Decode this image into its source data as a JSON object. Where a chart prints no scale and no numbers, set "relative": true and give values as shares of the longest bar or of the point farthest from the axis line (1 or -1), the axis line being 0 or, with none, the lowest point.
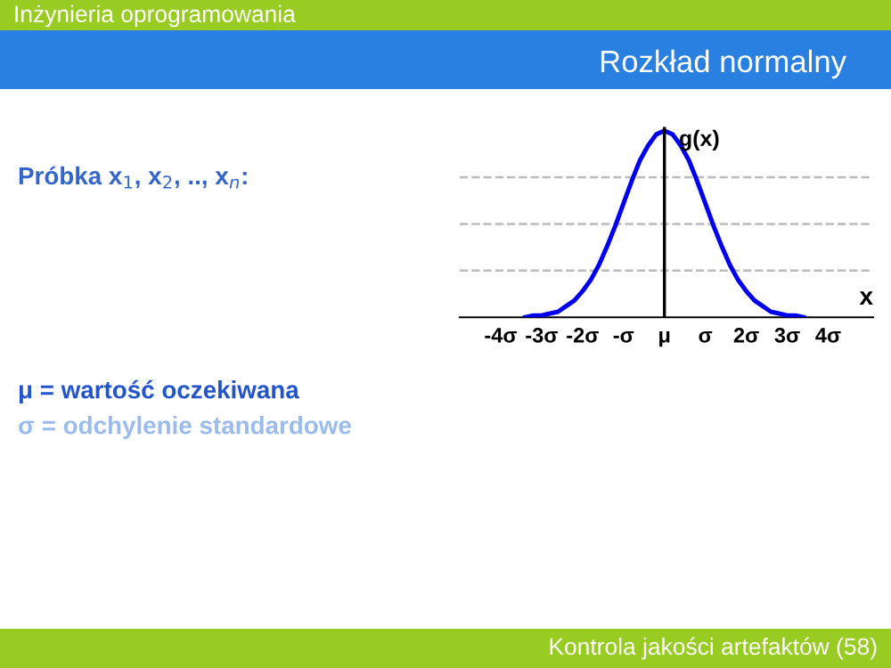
{
  "chart_data": {
    "type": "line",
    "title": "Rozkład normalny",
    "xlabel": "x",
    "ylabel": "g(x)",
    "relative": true,
    "x": [
      -3.4,
      -3.2,
      -3.0,
      -2.8,
      -2.6,
      -2.4,
      -2.2,
      -2.0,
      -1.8,
      -1.6,
      -1.4,
      -1.2,
      -1.0,
      -0.8,
      -0.6,
      -0.4,
      -0.2,
      0,
      0.2,
      0.4,
      0.6,
      0.8,
      1.0,
      1.2,
      1.4,
      1.6,
      1.8,
      2.0,
      2.2,
      2.4,
      2.6,
      2.8,
      3.0,
      3.2,
      3.4
    ],
    "series": [
      {
        "color": "#0000ee",
        "values": [
          0,
          0.01,
          0.01,
          0.02,
          0.03,
          0.06,
          0.09,
          0.14,
          0.2,
          0.28,
          0.38,
          0.49,
          0.61,
          0.73,
          0.84,
          0.92,
          0.98,
          1,
          0.98,
          0.92,
          0.84,
          0.73,
          0.61,
          0.49,
          0.38,
          0.28,
          0.2,
          0.14,
          0.09,
          0.06,
          0.03,
          0.02,
          0.01,
          0.01,
          0
        ]
      }
    ],
    "xlim": [
      -5,
      5.1
    ],
    "xticks": [
      {
        "value": -4,
        "label": "-4σ"
      },
      {
        "value": -3,
        "label": "-3σ"
      },
      {
        "value": -2,
        "label": "-2σ"
      },
      {
        "value": -1,
        "label": "-σ"
      },
      {
        "value": 0,
        "label": "μ"
      },
      {
        "value": 1,
        "label": "σ"
      },
      {
        "value": 2,
        "label": "2σ"
      },
      {
        "value": 3,
        "label": "3σ"
      },
      {
        "value": 4,
        "label": "4σ"
      }
    ],
    "ref_lines": [
      {
        "axis": "x",
        "value": 0,
        "color": "#000000"
      }
    ],
    "grid": "y",
    "line_style": "solid",
    "marker": "none",
    "legend": false,
    "annotations": [
      "Inżynieria oprogramowania",
      "Próbka x$_{1}$, x$_{2}$, .., x$_{n}$:",
      "μ = wartość oczekiwana",
      "σ = odchylenie standardowe",
      "Kontrola jakości artefaktów (58)"
    ]
  }
}
